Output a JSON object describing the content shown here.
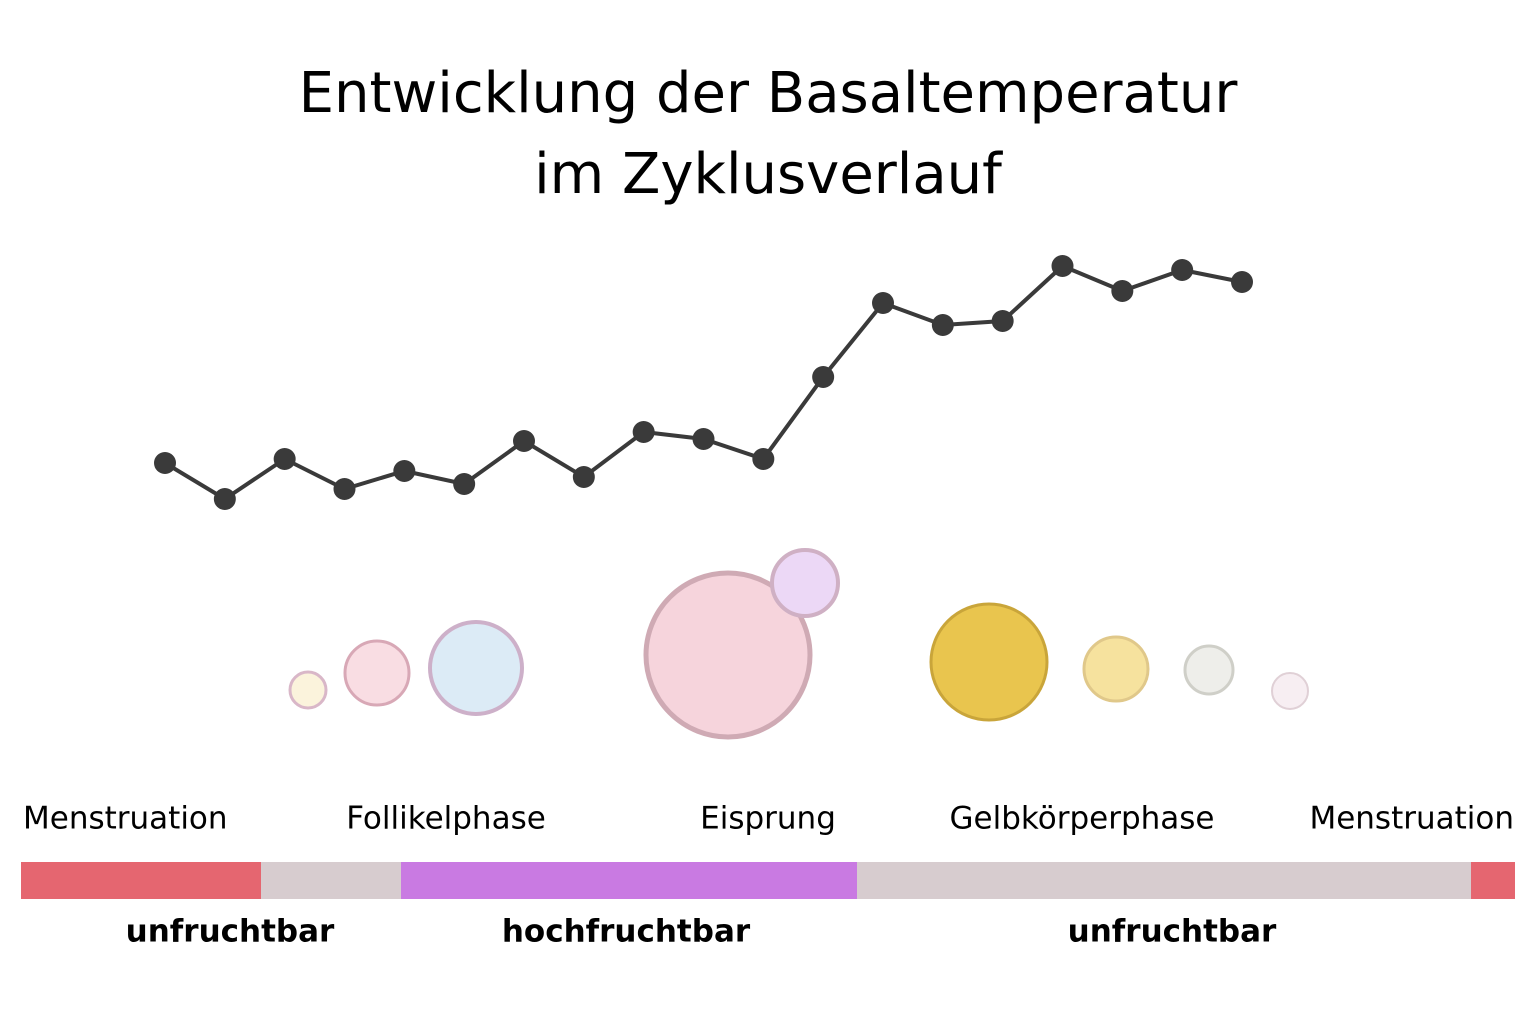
{
  "chart_data": {
    "type": "line",
    "title": [
      "Entwicklung der Basaltemperatur",
      "im Zyklusverlauf"
    ],
    "categories": [
      null,
      null,
      null,
      null,
      null,
      null,
      null,
      null,
      null,
      null,
      null,
      null,
      null,
      null,
      null,
      null,
      null,
      null,
      null
    ],
    "values": [
      13.7,
      10.1,
      14.1,
      11.1,
      12.9,
      11.6,
      15.9,
      12.3,
      16.8,
      16.1,
      14.1,
      22.3,
      29.7,
      27.5,
      27.9,
      33.4,
      30.9,
      33.0,
      31.8
    ],
    "color": "#3a3a3a",
    "ylim": [
      9,
      35
    ]
  },
  "phases": [
    "Menstruation",
    "Follikelphase",
    "Eisprung",
    "Gelbkörperphase",
    "Menstruation"
  ],
  "fertility": [
    "unfruchtbar",
    "hochfruchtbar",
    "unfruchtbar"
  ]
}
